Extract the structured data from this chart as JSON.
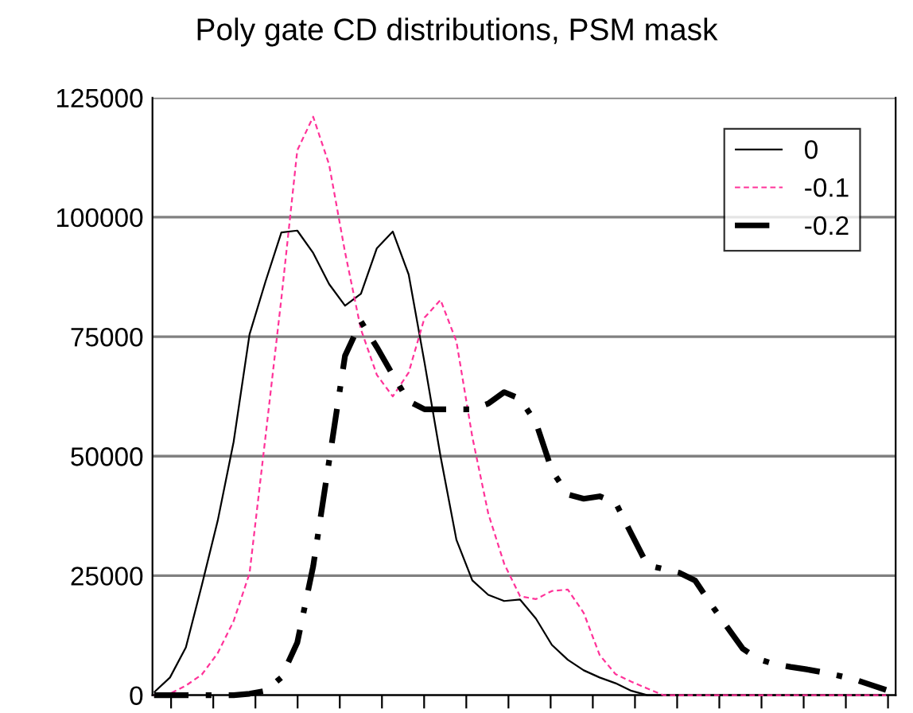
{
  "chart_data": {
    "type": "line",
    "title": "Poly gate CD distributions, PSM mask",
    "categories": [
      null,
      null,
      null,
      null,
      null,
      null,
      null,
      null,
      null,
      null,
      null,
      null,
      null,
      null,
      null,
      null,
      null,
      null,
      null,
      null,
      null,
      null,
      null,
      null,
      null,
      null,
      null,
      null,
      null,
      null,
      null,
      null,
      null,
      null,
      null,
      null,
      null,
      null,
      null,
      null,
      null,
      null,
      null,
      null,
      null,
      null,
      null
    ],
    "series": [
      {
        "name": "0",
        "color": "#000000",
        "line_style": "solid",
        "values": [
          600,
          3700,
          10000,
          23000,
          36500,
          53000,
          75500,
          86500,
          96800,
          97200,
          92500,
          86000,
          81500,
          84000,
          93500,
          97000,
          88000,
          69500,
          50000,
          32500,
          24000,
          21000,
          19700,
          20000,
          16000,
          10500,
          7400,
          5200,
          3700,
          2500,
          900,
          0,
          0,
          0,
          0,
          0,
          0,
          0,
          0,
          0,
          0,
          0,
          0,
          0,
          0,
          0,
          0
        ]
      },
      {
        "name": "-0.1",
        "color": "#ff3399",
        "line_style": "dotted",
        "values": [
          0,
          300,
          2000,
          4300,
          8800,
          15500,
          25500,
          54000,
          83000,
          114000,
          121000,
          111000,
          92700,
          76500,
          67000,
          62500,
          67500,
          79000,
          82700,
          74000,
          54000,
          38000,
          27500,
          20700,
          20100,
          21800,
          22100,
          17200,
          8400,
          4400,
          2800,
          1400,
          0,
          0,
          0,
          0,
          0,
          0,
          0,
          0,
          0,
          0,
          0,
          0,
          0,
          0,
          0
        ]
      },
      {
        "name": "-0.2",
        "color": "#000000",
        "line_style": "dashed",
        "values": [
          0,
          0,
          0,
          0,
          0,
          0,
          300,
          900,
          3700,
          11000,
          27000,
          49000,
          71000,
          78200,
          72800,
          67000,
          61500,
          59800,
          59800,
          59800,
          59800,
          61000,
          63400,
          62000,
          57000,
          47000,
          42000,
          41100,
          41600,
          40300,
          33700,
          27200,
          26400,
          25600,
          24000,
          19000,
          14300,
          9700,
          7500,
          6500,
          5900,
          5400,
          4800,
          4100,
          3300,
          2200,
          1100
        ]
      }
    ],
    "ylim": [
      0,
      125000
    ],
    "yticks": [
      0,
      25000,
      50000,
      75000,
      100000,
      125000
    ],
    "grid": "y",
    "legend": "top right",
    "tick_labels": "y"
  }
}
